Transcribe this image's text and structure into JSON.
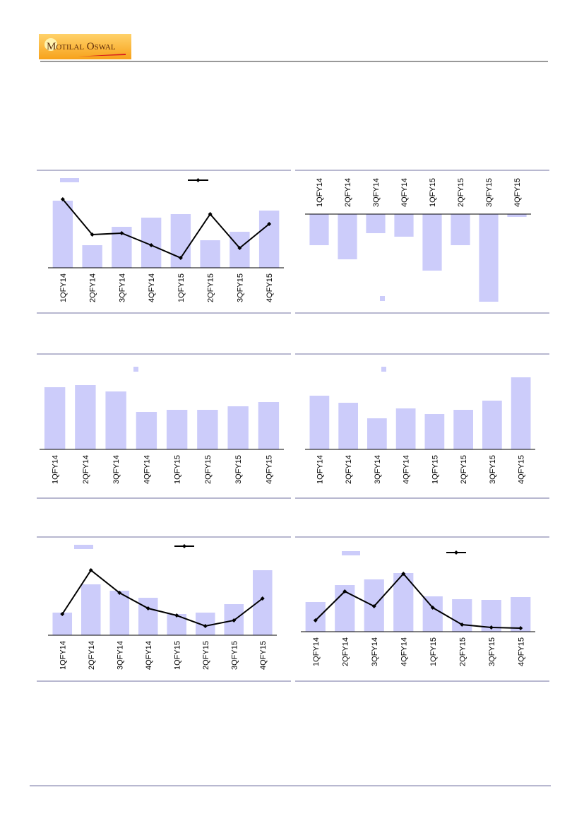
{
  "header": {
    "logo": "Motilal Oswal"
  },
  "chart_data": [
    {
      "type": "combo",
      "categories": [
        "1QFY14",
        "2QFY14",
        "3QFY14",
        "4QFY14",
        "1QFY15",
        "2QFY15",
        "3QFY15",
        "4QFY15"
      ],
      "ylim": [
        0,
        120
      ],
      "series": [
        {
          "color": "#ccccfa",
          "values": [
            95,
            32,
            58,
            71,
            76,
            39,
            51,
            81
          ]
        },
        {
          "color": "#000000",
          "values": [
            97,
            47,
            49,
            32,
            14,
            76,
            28,
            62
          ]
        }
      ]
    },
    {
      "type": "bar",
      "categories": [
        "1QFY14",
        "2QFY14",
        "3QFY14",
        "4QFY14",
        "1QFY15",
        "2QFY15",
        "3QFY15",
        "4QFY15"
      ],
      "ylim": [
        -130,
        0
      ],
      "series": [
        {
          "color": "#ccccfa",
          "values": [
            -44,
            -64,
            -27,
            -32,
            -80,
            -44,
            -124,
            -4
          ]
        }
      ]
    },
    {
      "type": "bar",
      "categories": [
        "1QFY14",
        "2QFY14",
        "3QFY14",
        "4QFY14",
        "1QFY15",
        "2QFY15",
        "3QFY15",
        "4QFY15"
      ],
      "ylim": [
        0,
        100
      ],
      "series": [
        {
          "color": "#ccccfa",
          "values": [
            88,
            91,
            82,
            53,
            56,
            56,
            61,
            67
          ]
        }
      ]
    },
    {
      "type": "bar",
      "categories": [
        "1QFY14",
        "2QFY14",
        "3QFY14",
        "4QFY14",
        "1QFY15",
        "2QFY15",
        "3QFY15",
        "4QFY15"
      ],
      "ylim": [
        0,
        110
      ],
      "series": [
        {
          "color": "#ccccfa",
          "values": [
            76,
            66,
            44,
            58,
            50,
            56,
            69,
            102
          ]
        }
      ]
    },
    {
      "type": "combo",
      "categories": [
        "1QFY14",
        "2QFY14",
        "3QFY14",
        "4QFY14",
        "1QFY15",
        "2QFY15",
        "3QFY15",
        "4QFY15"
      ],
      "ylim": [
        0,
        110
      ],
      "series": [
        {
          "color": "#ccccfa",
          "values": [
            32,
            72,
            63,
            53,
            30,
            32,
            44,
            92
          ]
        },
        {
          "color": "#000000",
          "values": [
            30,
            92,
            60,
            38,
            28,
            13,
            21,
            52
          ]
        }
      ]
    },
    {
      "type": "combo",
      "categories": [
        "1QFY14",
        "2QFY14",
        "3QFY14",
        "4QFY14",
        "1QFY15",
        "2QFY15",
        "3QFY15",
        "4QFY15"
      ],
      "ylim": [
        0,
        95
      ],
      "series": [
        {
          "color": "#ccccfa",
          "values": [
            42,
            66,
            74,
            83,
            50,
            46,
            45,
            49
          ]
        },
        {
          "color": "#000000",
          "values": [
            16,
            57,
            36,
            82,
            34,
            10,
            6,
            5
          ]
        }
      ]
    }
  ]
}
